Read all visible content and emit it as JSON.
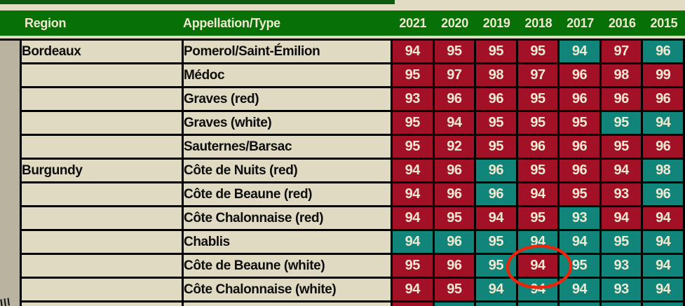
{
  "colors": {
    "header_green": "#077007",
    "top_bar_green": "#0d5912",
    "score_red": "#a31126",
    "score_teal": "#12857b",
    "page_beige": "#e3dcc5",
    "cell_beige": "#e0dac2",
    "margin_strip": "#bab3a0",
    "cell_text_cream": "#f0e9d2",
    "header_text_cream": "#f0e9d2",
    "annotation_red": "#e8250d",
    "grid_black": "#000000"
  },
  "chart_data": {
    "type": "table",
    "columns": [
      "Region",
      "Appellation/Type",
      "2021",
      "2020",
      "2019",
      "2018",
      "2017",
      "2016",
      "2015"
    ],
    "rows": [
      {
        "region": "Bordeaux",
        "appellation": "Pomerol/Saint-Émilion",
        "scores": [
          94,
          95,
          95,
          95,
          94,
          97,
          96
        ],
        "cell_colors": [
          "red",
          "red",
          "red",
          "red",
          "teal",
          "red",
          "teal"
        ]
      },
      {
        "region": "",
        "appellation": "Médoc",
        "scores": [
          95,
          97,
          98,
          97,
          96,
          98,
          99
        ],
        "cell_colors": [
          "red",
          "red",
          "red",
          "red",
          "red",
          "red",
          "red"
        ]
      },
      {
        "region": "",
        "appellation": "Graves (red)",
        "scores": [
          93,
          96,
          96,
          95,
          96,
          96,
          96
        ],
        "cell_colors": [
          "red",
          "red",
          "red",
          "red",
          "red",
          "red",
          "red"
        ]
      },
      {
        "region": "",
        "appellation": "Graves (white)",
        "scores": [
          95,
          94,
          95,
          95,
          95,
          95,
          94
        ],
        "cell_colors": [
          "red",
          "red",
          "red",
          "red",
          "red",
          "teal",
          "teal"
        ]
      },
      {
        "region": "",
        "appellation": "Sauternes/Barsac",
        "scores": [
          95,
          92,
          95,
          96,
          96,
          95,
          96
        ],
        "cell_colors": [
          "red",
          "red",
          "red",
          "red",
          "red",
          "red",
          "red"
        ]
      },
      {
        "region": "Burgundy",
        "appellation": "Côte de Nuits (red)",
        "scores": [
          94,
          96,
          96,
          95,
          96,
          94,
          98
        ],
        "cell_colors": [
          "red",
          "red",
          "teal",
          "red",
          "red",
          "red",
          "teal"
        ]
      },
      {
        "region": "",
        "appellation": "Côte de Beaune (red)",
        "scores": [
          94,
          96,
          96,
          94,
          95,
          93,
          96
        ],
        "cell_colors": [
          "red",
          "red",
          "teal",
          "red",
          "red",
          "red",
          "teal"
        ]
      },
      {
        "region": "",
        "appellation": "Côte Chalonnaise (red)",
        "scores": [
          94,
          95,
          94,
          95,
          93,
          94,
          94
        ],
        "cell_colors": [
          "red",
          "red",
          "red",
          "red",
          "teal",
          "red",
          "red"
        ]
      },
      {
        "region": "",
        "appellation": "Chablis",
        "scores": [
          94,
          96,
          95,
          94,
          94,
          95,
          94
        ],
        "cell_colors": [
          "teal",
          "teal",
          "teal",
          "teal",
          "teal",
          "teal",
          "teal"
        ]
      },
      {
        "region": "",
        "appellation": "Côte de Beaune (white)",
        "scores": [
          95,
          96,
          95,
          94,
          95,
          93,
          94
        ],
        "cell_colors": [
          "red",
          "red",
          "teal",
          "red",
          "teal",
          "teal",
          "teal"
        ]
      },
      {
        "region": "",
        "appellation": "Côte Chalonnaise (white)",
        "scores": [
          94,
          95,
          94,
          94,
          94,
          93,
          94
        ],
        "cell_colors": [
          "red",
          "red",
          "teal",
          "teal",
          "teal",
          "teal",
          "teal"
        ]
      }
    ],
    "partial_row_colors": [
      "red",
      "teal",
      "teal",
      "teal",
      "teal",
      "teal",
      "teal"
    ]
  },
  "annotation": {
    "shape": "ellipse",
    "circled_value": "94",
    "target_year": "2018",
    "target_appellation": "Côte de Beaune (white)"
  },
  "margin_mark": "Ill"
}
